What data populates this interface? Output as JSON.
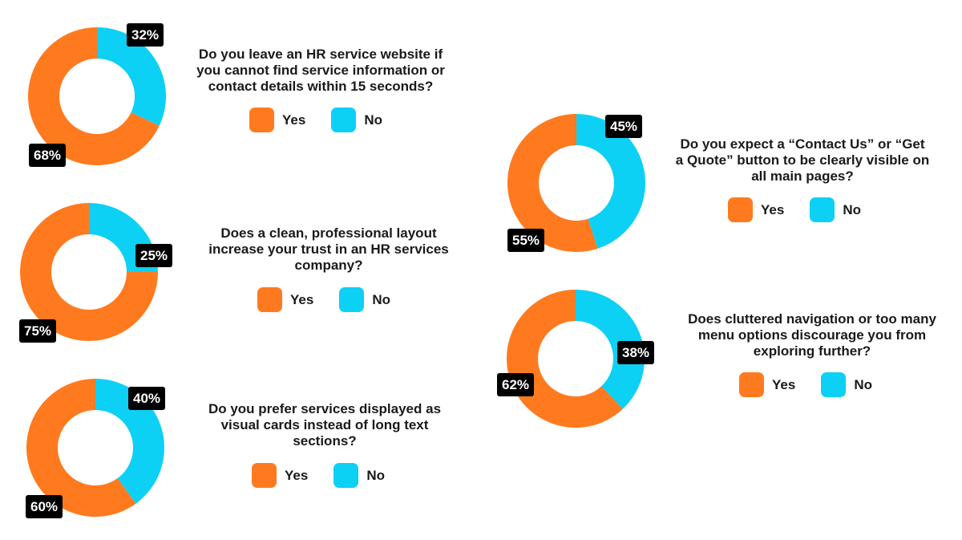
{
  "colors": {
    "yes": "#FF7A1F",
    "no": "#0DD0F5"
  },
  "legend": {
    "yes_label": "Yes",
    "no_label": "No"
  },
  "chart_data": [
    {
      "type": "pie",
      "title": "Do you leave an HR service website if you cannot find service information or contact details within 15 seconds?",
      "categories": [
        "Yes",
        "No"
      ],
      "values": [
        68,
        32
      ],
      "labels": [
        "68%",
        "32%"
      ]
    },
    {
      "type": "pie",
      "title": "Does a clean, professional layout increase your trust in an HR services company?",
      "categories": [
        "Yes",
        "No"
      ],
      "values": [
        75,
        25
      ],
      "labels": [
        "75%",
        "25%"
      ]
    },
    {
      "type": "pie",
      "title": "Do you prefer services displayed as visual cards instead of long text sections?",
      "categories": [
        "Yes",
        "No"
      ],
      "values": [
        60,
        40
      ],
      "labels": [
        "60%",
        "40%"
      ]
    },
    {
      "type": "pie",
      "title": "Do you expect a “Contact Us” or “Get a Quote” button to be clearly visible on all main pages?",
      "categories": [
        "Yes",
        "No"
      ],
      "values": [
        55,
        45
      ],
      "labels": [
        "55%",
        "45%"
      ]
    },
    {
      "type": "pie",
      "title": "Does cluttered navigation or too many menu options discourage you from exploring further?",
      "categories": [
        "Yes",
        "No"
      ],
      "values": [
        62,
        38
      ],
      "labels": [
        "62%",
        "38%"
      ]
    }
  ]
}
